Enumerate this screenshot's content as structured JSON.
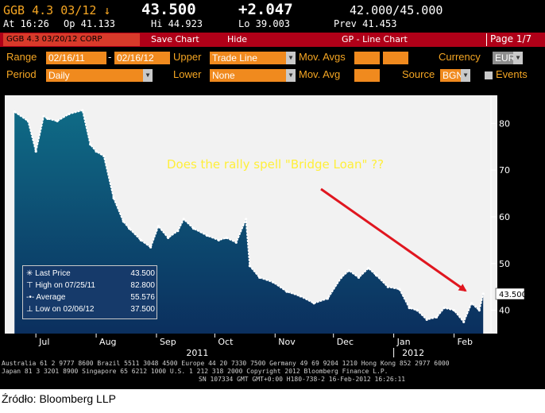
{
  "header": {
    "ticker": "GGB 4.3 03/12 ↓",
    "last_price": "43.500",
    "change": "+2.047",
    "bid_ask": "42.000/45.000",
    "at_time": "At 16:26",
    "open": "Op 41.133",
    "high": "Hi 44.923",
    "low": "Lo 39.003",
    "prev": "Prev 41.453"
  },
  "toolbar": {
    "security": "GGB 4.3 03/20/12 CORP",
    "save_chart": "Save Chart",
    "hide": "Hide",
    "title": "GP - Line Chart",
    "page": "Page 1/7"
  },
  "controls": {
    "range_label": "Range",
    "range_from": "02/16/11",
    "range_to": "02/16/12",
    "upper_label": "Upper",
    "upper_value": "Trade Line",
    "mov_avgs_label": "Mov. Avgs",
    "currency_label": "Currency",
    "currency_value": "EUR",
    "period_label": "Period",
    "period_value": "Daily",
    "lower_label": "Lower",
    "lower_value": "None",
    "mov_avg_label": "Mov. Avg",
    "source_label": "Source",
    "source_value": "BGN",
    "events_label": "Events"
  },
  "chart_data": {
    "type": "area",
    "title": "",
    "annotation": "Does the rally spell \"Bridge Loan\" ??",
    "x_tick_labels": [
      "Jul",
      "Aug",
      "Sep",
      "Oct",
      "Nov",
      "Dec",
      "Jan",
      "Feb"
    ],
    "x_year_labels": [
      "2011",
      "2012"
    ],
    "y_tick_labels": [
      "40",
      "50",
      "60",
      "70",
      "80"
    ],
    "ylim": [
      35,
      86
    ],
    "grid": false,
    "last_price_tag": "43.500",
    "colors": {
      "line": "#ffffff",
      "area_top": "#0f6b86",
      "area_bottom": "#0b2f5e",
      "arrow": "#e0161f",
      "annotation": "#ffef3a"
    },
    "series": [
      {
        "x": [
          "2011-06-20",
          "2011-06-27",
          "2011-07-01",
          "2011-07-05",
          "2011-07-07",
          "2011-07-12",
          "2011-07-18",
          "2011-07-25",
          "2011-07-29",
          "2011-08-01",
          "2011-08-05",
          "2011-08-10",
          "2011-08-15",
          "2011-08-18",
          "2011-08-24",
          "2011-08-29",
          "2011-09-02",
          "2011-09-07",
          "2011-09-12",
          "2011-09-15",
          "2011-09-20",
          "2011-09-27",
          "2011-10-03",
          "2011-10-07",
          "2011-10-12",
          "2011-10-17",
          "2011-10-19",
          "2011-10-24",
          "2011-10-31",
          "2011-11-07",
          "2011-11-14",
          "2011-11-21",
          "2011-11-28",
          "2011-12-05",
          "2011-12-09",
          "2011-12-14",
          "2011-12-19",
          "2011-12-23",
          "2011-12-29",
          "2012-01-04",
          "2012-01-09",
          "2012-01-13",
          "2012-01-18",
          "2012-01-23",
          "2012-01-27",
          "2012-02-01",
          "2012-02-06",
          "2012-02-10",
          "2012-02-14",
          "2012-02-16"
        ],
        "y": [
          82.5,
          80.5,
          74.0,
          81.5,
          81.0,
          80.5,
          82.0,
          82.8,
          75.5,
          74.0,
          73.0,
          64.0,
          59.0,
          57.5,
          55.0,
          53.5,
          58.0,
          55.5,
          57.0,
          59.5,
          57.5,
          56.0,
          55.0,
          55.5,
          54.5,
          59.5,
          49.5,
          47.0,
          46.0,
          44.0,
          43.0,
          41.5,
          42.5,
          47.0,
          48.5,
          47.0,
          49.0,
          47.5,
          45.0,
          44.5,
          40.5,
          40.0,
          38.0,
          38.5,
          40.5,
          40.0,
          37.5,
          41.5,
          40.0,
          43.5
        ]
      }
    ],
    "legend": [
      {
        "label": "Last Price",
        "value": "43.500"
      },
      {
        "label": "High on 07/25/11",
        "value": "82.800"
      },
      {
        "label": "Average",
        "value": "55.576"
      },
      {
        "label": "Low on 02/06/12",
        "value": "37.500"
      }
    ]
  },
  "footer": {
    "line1": "Australia 61 2 9777 8600 Brazil 5511 3048 4500 Europe 44 20 7330 7500 Germany 49 69 9204 1210 Hong Kong 852 2977 6000",
    "line2": "Japan 81 3 3201 8900        Singapore 65 6212 1000        U.S. 1 212 318 2000        Copyright 2012 Bloomberg Finance L.P.",
    "line3": "SN 107334 GMT  GMT+0:00 H180-738-2 16-Feb-2012 16:26:11"
  },
  "source": "Źródło: Bloomberg LLP"
}
